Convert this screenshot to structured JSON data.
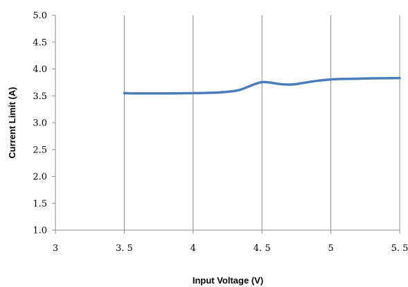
{
  "chart_data": {
    "type": "line",
    "xlabel": "Input Voltage (V)",
    "ylabel": "Current Limit (A)",
    "xlim": [
      3,
      5.5
    ],
    "ylim": [
      1.0,
      5.0
    ],
    "x_ticks": [
      3,
      3.5,
      4,
      4.5,
      5,
      5.5
    ],
    "x_tick_labels": [
      "3",
      "3. 5",
      "4",
      "4. 5",
      "5",
      "5. 5"
    ],
    "y_ticks": [
      1.0,
      1.5,
      2.0,
      2.5,
      3.0,
      3.5,
      4.0,
      4.5,
      5.0
    ],
    "y_tick_labels": [
      "1.0",
      "1.5",
      "2.0",
      "2.5",
      "3.0",
      "3.5",
      "4.0",
      "4.5",
      "5.0"
    ],
    "grid": "vertical",
    "legend": "none",
    "series": [
      {
        "color": "#4a7ebb",
        "x": [
          3.5,
          3.6,
          3.8,
          4.0,
          4.1,
          4.2,
          4.3,
          4.35,
          4.4,
          4.45,
          4.5,
          4.55,
          4.6,
          4.65,
          4.7,
          4.75,
          4.8,
          4.9,
          5.0,
          5.1,
          5.2,
          5.3,
          5.4,
          5.5
        ],
        "y": [
          3.55,
          3.545,
          3.545,
          3.55,
          3.555,
          3.565,
          3.59,
          3.62,
          3.67,
          3.72,
          3.755,
          3.75,
          3.73,
          3.715,
          3.71,
          3.72,
          3.74,
          3.78,
          3.805,
          3.815,
          3.82,
          3.825,
          3.828,
          3.83
        ]
      }
    ]
  }
}
